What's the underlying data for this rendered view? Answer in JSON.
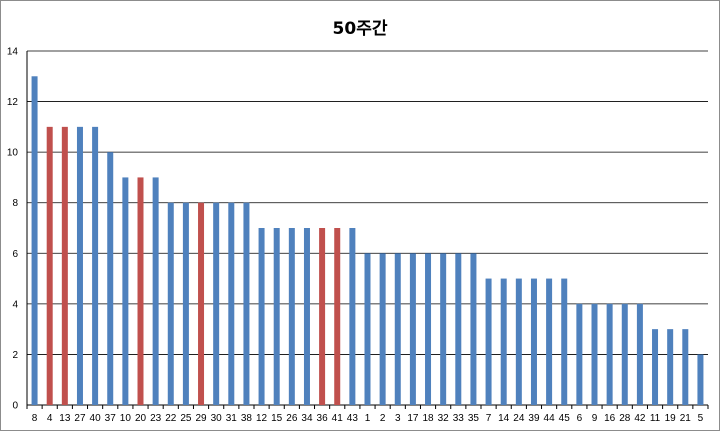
{
  "chart_data": {
    "type": "bar",
    "title": "50주간",
    "xlabel": "",
    "ylabel": "",
    "ylim": [
      0,
      14
    ],
    "yticks": [
      0,
      2,
      4,
      6,
      8,
      10,
      12,
      14
    ],
    "grid": true,
    "legend": "none",
    "categories": [
      "8",
      "4",
      "13",
      "27",
      "40",
      "37",
      "10",
      "20",
      "23",
      "22",
      "25",
      "29",
      "30",
      "31",
      "38",
      "12",
      "15",
      "26",
      "34",
      "36",
      "41",
      "43",
      "1",
      "2",
      "3",
      "17",
      "18",
      "32",
      "33",
      "35",
      "7",
      "14",
      "24",
      "39",
      "44",
      "45",
      "6",
      "9",
      "16",
      "28",
      "42",
      "11",
      "19",
      "21",
      "5"
    ],
    "values": [
      13,
      11,
      11,
      11,
      11,
      10,
      9,
      9,
      9,
      8,
      8,
      8,
      8,
      8,
      8,
      7,
      7,
      7,
      7,
      7,
      7,
      7,
      6,
      6,
      6,
      6,
      6,
      6,
      6,
      6,
      5,
      5,
      5,
      5,
      5,
      5,
      4,
      4,
      4,
      4,
      4,
      3,
      3,
      3,
      2
    ],
    "highlighted": [
      "4",
      "13",
      "20",
      "29",
      "36",
      "41"
    ],
    "colors": {
      "default": "#4f81bd",
      "highlight": "#c0504d",
      "grid": "#000000"
    }
  }
}
